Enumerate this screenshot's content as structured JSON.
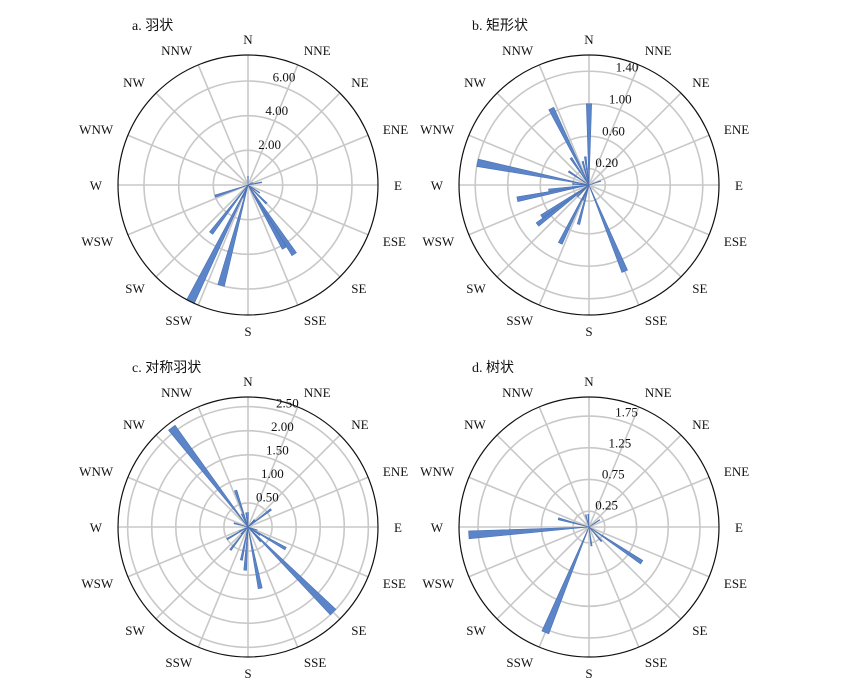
{
  "colors": {
    "petal": "#5b85c8",
    "petal_edge": "#4a72b4",
    "grid": "#c8c8c8",
    "outer_ring": "#111111"
  },
  "directions": [
    "N",
    "NNE",
    "NE",
    "ENE",
    "E",
    "ESE",
    "SE",
    "SSE",
    "S",
    "SSW",
    "SW",
    "WSW",
    "W",
    "WNW",
    "NW",
    "NNW"
  ],
  "chart_data": [
    {
      "type": "rose",
      "title": "a. 羽状",
      "rmax": 7.5,
      "rings": [
        2,
        4,
        6
      ],
      "tick_labels": [
        "2.00",
        "4.00",
        "6.00"
      ],
      "bins_per_sector": 3,
      "bin_values": [
        0.5,
        0,
        0,
        0,
        0,
        0,
        0,
        0,
        0,
        0,
        0,
        0,
        0,
        0,
        0,
        0,
        0,
        0.3,
        0,
        0,
        0,
        0.8,
        0,
        0,
        0,
        0,
        0,
        0,
        0,
        0,
        0,
        0,
        0,
        0.8,
        0,
        0,
        1.5,
        0,
        0,
        4.8,
        4.2,
        0,
        0,
        0,
        0,
        0,
        0,
        0,
        0,
        0,
        0,
        0,
        6.0,
        0,
        0.8,
        7.5,
        0,
        0,
        3.5,
        0,
        0,
        0,
        0,
        0,
        0,
        0,
        0,
        2.0,
        0,
        0,
        0,
        0,
        0,
        0,
        0,
        0,
        0,
        0,
        0,
        0,
        0,
        0,
        0,
        0,
        0,
        0,
        0,
        0,
        0,
        0,
        0,
        0,
        0,
        0,
        0,
        0
      ]
    },
    {
      "type": "rose",
      "title": "b. 矩形状",
      "rmax": 1.6,
      "rings": [
        0.2,
        0.6,
        1.0,
        1.4
      ],
      "tick_labels": [
        "0.20",
        "0.60",
        "1.00",
        "1.40"
      ],
      "bins_per_sector": 3,
      "bin_values": [
        1.0,
        0,
        0,
        0,
        0,
        0,
        0,
        0,
        0,
        0,
        0,
        0,
        0,
        0,
        0,
        0,
        0,
        0,
        0,
        0.15,
        0,
        0,
        0,
        0,
        0,
        0,
        0,
        0,
        0,
        0,
        0,
        0,
        0,
        0,
        0,
        0,
        0,
        0,
        0,
        0,
        0,
        0,
        1.15,
        0,
        0,
        0,
        0,
        0,
        0,
        0,
        0,
        0,
        0.5,
        0,
        0.2,
        0.8,
        0,
        0,
        0,
        0,
        0.2,
        0,
        0.8,
        0.7,
        0,
        0,
        0,
        0,
        0,
        0.9,
        0.5,
        0,
        0,
        0.2,
        0,
        1.4,
        0,
        0,
        0,
        0,
        0,
        0.3,
        0,
        0,
        0,
        0,
        0,
        0.4,
        0,
        1.05,
        0,
        0,
        0.3,
        0,
        0.35,
        0
      ]
    },
    {
      "type": "rose",
      "title": "c. 对称羽状",
      "rmax": 2.7,
      "rings": [
        0.5,
        1.0,
        1.5,
        2.0,
        2.5
      ],
      "tick_labels": [
        "0.50",
        "1.00",
        "1.50",
        "2.00",
        "2.50"
      ],
      "bins_per_sector": 3,
      "bin_values": [
        0.3,
        0,
        0,
        0,
        0,
        0,
        0,
        0,
        0,
        0,
        0,
        0.2,
        0.2,
        0,
        0.6,
        0,
        0,
        0,
        0,
        0,
        0,
        0,
        0,
        0,
        0,
        0,
        0,
        0,
        0,
        0.2,
        0,
        0,
        0.9,
        0.3,
        0,
        0,
        2.5,
        0.4,
        0,
        0,
        0,
        0,
        0,
        0,
        0,
        1.3,
        0,
        0,
        0,
        0.9,
        0,
        0.7,
        0,
        0,
        0,
        0,
        0,
        0,
        0.6,
        0,
        0.2,
        0,
        0,
        0,
        0.5,
        0.2,
        0,
        0,
        0,
        0,
        0,
        0,
        0,
        0,
        0,
        0,
        0.3,
        0,
        0,
        0,
        0,
        0,
        0,
        0,
        0,
        0,
        2.6,
        0,
        0,
        0.3,
        0,
        0.8,
        0,
        0,
        0.3,
        0
      ]
    },
    {
      "type": "rose",
      "title": "d. 树状",
      "rmax": 2.05,
      "rings": [
        0.25,
        0.75,
        1.25,
        1.75
      ],
      "tick_labels": [
        "0.25",
        "0.75",
        "1.25",
        "1.75"
      ],
      "bins_per_sector": 3,
      "bin_values": [
        0,
        0,
        0,
        0,
        0,
        0,
        0,
        0,
        0,
        0,
        0,
        0,
        0,
        0,
        0,
        0.2,
        0,
        0,
        0,
        0,
        0,
        0,
        0,
        0,
        0,
        0,
        0,
        0,
        0,
        0,
        0,
        0,
        0,
        1.0,
        0,
        0,
        0,
        0.3,
        0,
        0,
        0,
        0,
        0,
        0,
        0,
        0,
        0.3,
        0,
        0,
        0,
        0,
        0,
        0,
        0,
        1.8,
        0,
        0,
        0,
        0,
        0,
        0,
        0,
        0,
        0,
        0,
        0,
        0,
        0,
        0,
        0,
        0,
        1.9,
        0,
        0,
        0,
        0,
        0.5,
        0,
        0,
        0,
        0,
        0,
        0,
        0,
        0,
        0,
        0,
        0,
        0,
        0,
        0,
        0,
        0.2,
        0,
        0,
        0.2
      ]
    }
  ]
}
